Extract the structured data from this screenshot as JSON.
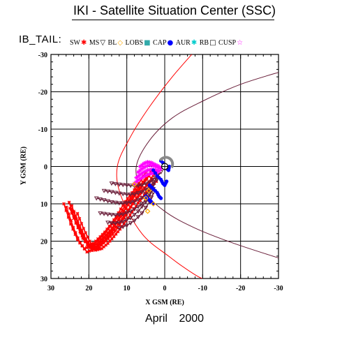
{
  "header": {
    "title": "IKI - Satellite Situation Center (SSC)",
    "series_code": "IB_TAIL:"
  },
  "legend": [
    {
      "label": "SW",
      "marker": "✱",
      "color": "#ff0000"
    },
    {
      "label": "MS",
      "marker": "▽",
      "color": "#000000"
    },
    {
      "label": "BL",
      "marker": "◇",
      "color": "#ffaa00"
    },
    {
      "label": "LOBS",
      "marker": "■",
      "color": "#33aaaa"
    },
    {
      "label": "CAP",
      "marker": "●",
      "color": "#0000ff"
    },
    {
      "label": "AUR",
      "marker": "✱",
      "color": "#00cccc"
    },
    {
      "label": "RB",
      "marker": "□",
      "color": "#000000"
    },
    {
      "label": "CUSP",
      "marker": "☆",
      "color": "#ff00ff"
    }
  ],
  "footer": {
    "month": "April",
    "year": "2000"
  },
  "chart_data": {
    "type": "line",
    "xlabel": "X GSM (RE)",
    "ylabel": "Y GSM (RE)",
    "xlim": [
      30,
      -30
    ],
    "ylim": [
      -30,
      30
    ],
    "x_ticks": [
      30,
      20,
      10,
      0,
      -10,
      -20,
      -30
    ],
    "y_ticks": [
      -30,
      -20,
      -10,
      0,
      10,
      20,
      30
    ],
    "grid": true,
    "colors": {
      "sw": "#ff0000",
      "ms_track": "#6a1f3a",
      "bl": "#ffaa00",
      "cap": "#0000ff",
      "cusp": "#ff00ff",
      "bow_shock": "#ff0000",
      "magnetopause": "#6a1f3a"
    },
    "boundaries": {
      "bow_shock": [
        [
          -8,
          -31
        ],
        [
          -2,
          -24
        ],
        [
          4,
          -16
        ],
        [
          9,
          -8
        ],
        [
          12.5,
          0
        ],
        [
          11.5,
          8
        ],
        [
          6,
          18
        ],
        [
          -1,
          24
        ],
        [
          -8,
          29
        ],
        [
          -12,
          31
        ]
      ],
      "magnetopause": [
        [
          -31,
          -25.5
        ],
        [
          -20,
          -22
        ],
        [
          -10,
          -17.5
        ],
        [
          -2,
          -13
        ],
        [
          4,
          -7
        ],
        [
          7.5,
          0
        ],
        [
          6,
          6
        ],
        [
          0,
          12
        ],
        [
          -8,
          16.5
        ],
        [
          -18,
          20.5
        ],
        [
          -30,
          24.5
        ]
      ]
    },
    "series": [
      {
        "region": "SW",
        "x": [
          24.5,
          22.7,
          20.9,
          19.1,
          17.3,
          15.5,
          13.7,
          11.9,
          10.1,
          8.3,
          6.5,
          4.7,
          2.9
        ],
        "y": [
          10.5,
          15.9,
          20.1,
          22.5,
          21.7,
          19.9,
          18.1,
          15.7,
          12.9,
          9.9,
          7.5,
          5.1,
          2.1
        ]
      },
      {
        "region": "SW",
        "x": [
          25.2,
          23.4,
          21.6,
          19.8,
          18.0,
          16.2,
          14.4,
          12.6,
          10.8,
          9.0,
          7.2,
          5.4,
          3.6
        ],
        "y": [
          9.6,
          15.0,
          19.2,
          21.6,
          20.8,
          19.0,
          17.2,
          14.8,
          12.0,
          9.0,
          6.6,
          4.2,
          1.2
        ]
      },
      {
        "region": "SW",
        "x": [
          25.9,
          24.1,
          22.3,
          20.5,
          18.7,
          16.9,
          15.1,
          13.3,
          11.5,
          9.7,
          7.9,
          6.1,
          4.3
        ],
        "y": [
          10.9,
          16.3,
          20.5,
          22.9,
          22.1,
          20.3,
          18.5,
          16.1,
          13.3,
          10.3,
          7.9,
          5.5,
          2.5
        ]
      },
      {
        "region": "SW",
        "x": [
          26.6,
          24.8,
          23.0,
          21.2,
          19.4,
          17.6,
          15.8,
          14.0,
          12.2,
          10.4,
          8.6,
          6.8,
          5.0
        ],
        "y": [
          10.0,
          15.4,
          19.6,
          22.0,
          21.2,
          19.4,
          17.6,
          15.2,
          12.4,
          9.4,
          7.0,
          4.6,
          1.6
        ]
      },
      {
        "region": "SW",
        "x": [
          25.0,
          23.4,
          21.8,
          20.2,
          18.6,
          17.0,
          15.4,
          13.8,
          12.2,
          10.6,
          9.0,
          7.4,
          5.8,
          4.2
        ],
        "y": [
          11.2,
          15.2,
          18.6,
          21.0,
          20.6,
          19.2,
          17.4,
          15.4,
          13.2,
          10.8,
          8.4,
          6.2,
          4.2,
          2.6
        ]
      },
      {
        "region": "SW",
        "x": [
          24.0,
          22.4,
          20.8,
          19.2,
          17.6,
          16.0,
          14.4,
          12.8,
          11.2,
          9.6,
          8.0,
          6.4,
          4.8,
          3.2
        ],
        "y": [
          12.0,
          16.0,
          19.4,
          21.8,
          21.4,
          20.0,
          18.2,
          16.2,
          14.0,
          11.6,
          9.2,
          7.0,
          5.0,
          3.4
        ]
      },
      {
        "region": "SW",
        "x": [
          23.0,
          21.4,
          19.8,
          18.2,
          16.6,
          15.0,
          13.4,
          11.8,
          10.2,
          8.6,
          7.0,
          5.4,
          3.8,
          2.2
        ],
        "y": [
          12.6,
          16.6,
          20.0,
          22.4,
          22.0,
          20.6,
          18.8,
          16.8,
          14.6,
          12.2,
          9.8,
          7.6,
          5.6,
          4.0
        ]
      },
      {
        "region": "MS",
        "x": [
          14.0,
          12.0,
          10.0,
          8.0,
          6.0,
          4.0,
          2.5,
          1.0
        ],
        "y": [
          4.5,
          4.8,
          5.0,
          5.2,
          5.0,
          4.2,
          3.0,
          1.5
        ]
      },
      {
        "region": "MS",
        "x": [
          16.0,
          14.0,
          12.0,
          10.0,
          8.0,
          6.0,
          4.0,
          2.0
        ],
        "y": [
          6.5,
          6.8,
          7.2,
          7.5,
          7.4,
          6.8,
          5.4,
          3.0
        ]
      },
      {
        "region": "MS",
        "x": [
          18.0,
          16.0,
          14.0,
          12.0,
          10.0,
          8.0,
          6.0,
          4.0,
          2.0
        ],
        "y": [
          8.5,
          9.0,
          9.5,
          9.8,
          9.8,
          9.4,
          8.4,
          6.5,
          3.5
        ]
      },
      {
        "region": "MS",
        "x": [
          17.0,
          15.0,
          13.0,
          11.0,
          9.0,
          7.0,
          5.0,
          3.0
        ],
        "y": [
          12.5,
          12.8,
          13.0,
          12.8,
          12.0,
          10.8,
          9.0,
          6.0
        ]
      },
      {
        "region": "MS",
        "x": [
          15.0,
          13.0,
          11.0,
          9.0,
          7.0,
          5.0,
          3.5
        ],
        "y": [
          15.0,
          15.2,
          14.8,
          13.8,
          12.0,
          9.5,
          6.5
        ]
      },
      {
        "region": "MS",
        "x": [
          12.0,
          10.0,
          8.0,
          6.0,
          4.0,
          3.0
        ],
        "y": [
          16.5,
          15.8,
          14.5,
          12.5,
          9.5,
          7.0
        ]
      },
      {
        "region": "CUSP",
        "x": [
          6.5,
          5.5,
          4.5,
          3.5,
          2.5,
          1.5
        ],
        "y": [
          0.0,
          -0.8,
          -1.2,
          -1.0,
          -0.5,
          0.0
        ]
      },
      {
        "region": "CUSP",
        "x": [
          7.0,
          6.0,
          5.0,
          4.0,
          3.0,
          2.0,
          1.0
        ],
        "y": [
          1.5,
          0.6,
          0.0,
          -0.4,
          -0.2,
          0.2,
          0.6
        ]
      },
      {
        "region": "CUSP",
        "x": [
          7.5,
          6.5,
          5.5,
          4.5,
          3.5,
          2.5,
          1.5
        ],
        "y": [
          3.0,
          2.2,
          1.5,
          1.0,
          0.8,
          1.0,
          1.2
        ]
      },
      {
        "region": "CUSP",
        "x": [
          8.0,
          7.0,
          6.0,
          5.0,
          4.0,
          3.0,
          2.0
        ],
        "y": [
          4.5,
          3.7,
          3.0,
          2.4,
          2.0,
          1.8,
          1.6
        ]
      },
      {
        "region": "CAP",
        "x": [
          1.0,
          0.0,
          -0.5,
          -1.0,
          -1.2
        ],
        "y": [
          -1.5,
          -0.5,
          0.5,
          1.0,
          0.0
        ]
      },
      {
        "region": "CAP",
        "x": [
          3.0,
          2.0,
          1.0,
          0.5,
          0.0,
          -0.5
        ],
        "y": [
          1.0,
          2.5,
          3.5,
          4.5,
          5.0,
          4.0
        ]
      },
      {
        "region": "CAP",
        "x": [
          4.0,
          3.0,
          2.0,
          1.5,
          1.0
        ],
        "y": [
          5.0,
          6.0,
          7.0,
          8.0,
          8.5
        ]
      },
      {
        "region": "CAP",
        "x": [
          5.0,
          4.0,
          3.5,
          3.0
        ],
        "y": [
          8.0,
          9.0,
          9.5,
          10.0
        ]
      },
      {
        "region": "BL",
        "x": [
          4.2,
          5.0,
          3.0,
          8.0,
          4.5
        ],
        "y": [
          6.5,
          8.5,
          10.0,
          4.8,
          12.0
        ]
      }
    ]
  }
}
